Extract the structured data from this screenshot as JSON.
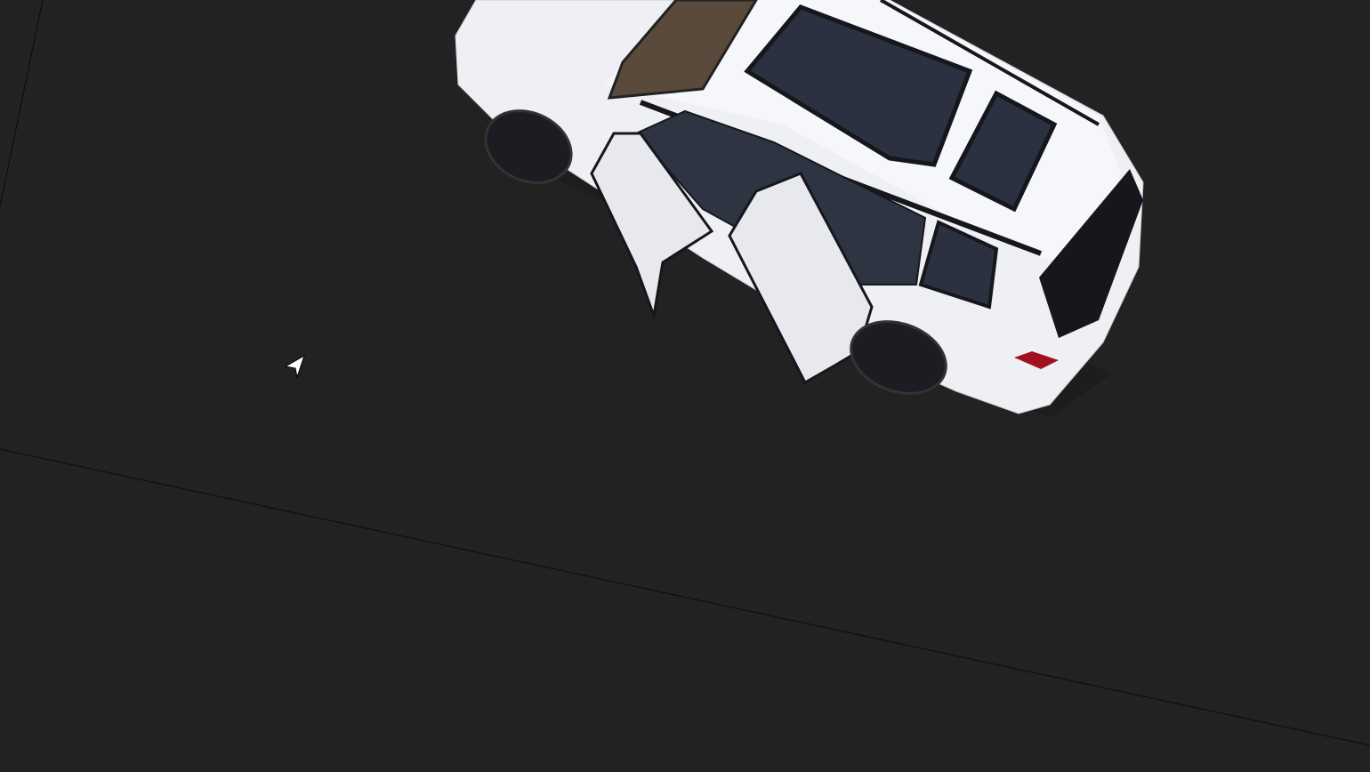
{
  "viewport": {
    "background_color": "#222222",
    "grid_line_color": "#0e0e0e",
    "cursor_icon": "pointer-arrow-icon"
  },
  "vehicle": {
    "type": "white SUV, 3D model, top view",
    "body_color": "#eef0f4",
    "glass_color": "#2b3140",
    "trim_color": "#15171c",
    "interior_color": "#2e3442",
    "wheel_color": "#1b1d22",
    "taillight_color": "#a0121e",
    "state": "doors open"
  }
}
